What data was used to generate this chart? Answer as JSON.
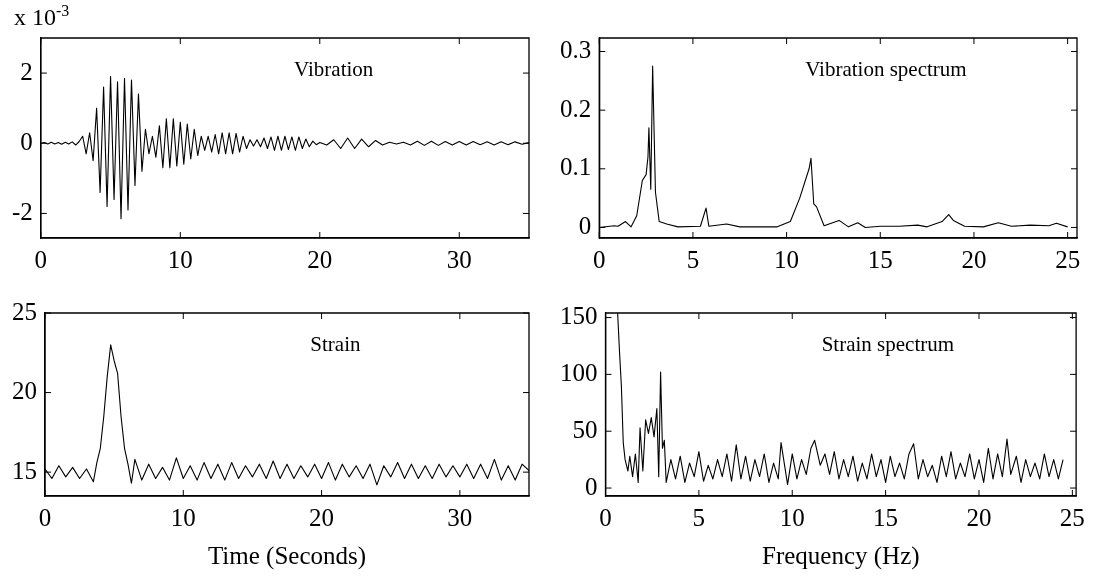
{
  "chart_data": [
    {
      "type": "line",
      "title": "Vibration",
      "annotations": [
        "x 10$^{-3}$"
      ],
      "xlim": [
        0,
        35
      ],
      "ylim": [
        -2.7,
        3
      ],
      "xticks": [
        0,
        10,
        20,
        30
      ],
      "yticks": [
        -2,
        0,
        2
      ],
      "grid": false,
      "marker": "none",
      "x": [
        0,
        0.25,
        0.5,
        0.75,
        1,
        1.25,
        1.5,
        1.75,
        2,
        2.25,
        2.5,
        2.75,
        3,
        3.25,
        3.5,
        3.75,
        4,
        4.25,
        4.5,
        4.75,
        5,
        5.25,
        5.5,
        5.75,
        6,
        6.25,
        6.5,
        6.75,
        7,
        7.25,
        7.5,
        7.75,
        8,
        8.25,
        8.5,
        8.75,
        9,
        9.25,
        9.5,
        9.75,
        10,
        10.25,
        10.5,
        10.75,
        11,
        11.25,
        11.5,
        11.75,
        12,
        12.25,
        12.5,
        12.75,
        13,
        13.25,
        13.5,
        13.75,
        14,
        14.25,
        14.5,
        14.75,
        15,
        15.25,
        15.5,
        15.75,
        16,
        16.25,
        16.5,
        16.75,
        17,
        17.25,
        17.5,
        17.75,
        18,
        18.25,
        18.5,
        18.75,
        19,
        19.25,
        19.5,
        19.75,
        20,
        20.5,
        21,
        21.5,
        22,
        22.5,
        23,
        23.5,
        24,
        24.5,
        25,
        25.5,
        26,
        26.5,
        27,
        27.5,
        28,
        28.5,
        29,
        29.5,
        30,
        30.5,
        31,
        31.5,
        32,
        32.5,
        33,
        33.5,
        34,
        34.5,
        35
      ],
      "series": [
        {
          "color": "#000000",
          "values": [
            0,
            0.02,
            -0.02,
            0.03,
            -0.02,
            0.02,
            -0.03,
            0.03,
            -0.02,
            0.04,
            -0.05,
            0.05,
            0.2,
            -0.3,
            0.3,
            -0.5,
            1,
            -1.4,
            1.6,
            -1.8,
            1.9,
            -1.6,
            1.75,
            -2.15,
            1.85,
            -1.9,
            1.8,
            -1.2,
            1.4,
            -0.8,
            0.4,
            -0.3,
            0.2,
            -0.4,
            0.5,
            -0.7,
            0.7,
            -0.7,
            0.7,
            -0.65,
            0.6,
            -0.6,
            0.55,
            -0.45,
            0.4,
            -0.35,
            0.2,
            -0.2,
            0.2,
            -0.25,
            0.25,
            -0.3,
            0.3,
            -0.3,
            0.3,
            -0.3,
            0.28,
            -0.25,
            0.2,
            -0.15,
            0.1,
            -0.08,
            0.1,
            -0.1,
            0.15,
            -0.15,
            0.18,
            -0.2,
            0.2,
            -0.2,
            0.2,
            -0.18,
            0.18,
            -0.2,
            0.18,
            -0.15,
            0.12,
            -0.1,
            0.06,
            -0.04,
            0.02,
            -0.05,
            0.1,
            -0.15,
            0.15,
            -0.15,
            0.12,
            -0.1,
            0.08,
            -0.05,
            0.03,
            -0.02,
            0.03,
            -0.05,
            0.06,
            -0.06,
            0.06,
            -0.06,
            0.05,
            -0.05,
            0.05,
            -0.05,
            0.05,
            -0.04,
            0.04,
            -0.05,
            0.04,
            -0.04,
            0.04,
            -0.03,
            0.02
          ]
        }
      ]
    },
    {
      "type": "line",
      "title": "Vibration spectrum",
      "xlim": [
        0,
        25.5
      ],
      "ylim": [
        -0.018,
        0.323
      ],
      "xticks": [
        0,
        5,
        10,
        15,
        20,
        25
      ],
      "yticks": [
        {
          "value": 0,
          "label": "0"
        },
        0.1,
        0.2,
        0.3
      ],
      "grid": false,
      "marker": "none",
      "x": [
        0,
        0.8,
        1,
        1.4,
        1.7,
        2,
        2.3,
        2.5,
        2.6,
        2.65,
        2.75,
        2.85,
        3,
        3.2,
        3.6,
        4.2,
        5.4,
        5.7,
        5.85,
        6.8,
        7.5,
        9.5,
        10.2,
        10.7,
        11.2,
        11.3,
        11.45,
        11.6,
        12,
        12.8,
        13.3,
        13.8,
        14.2,
        15,
        16,
        17,
        17.5,
        18.3,
        18.65,
        18.9,
        19.5,
        20.5,
        21.3,
        22,
        23,
        24,
        24.4,
        25
      ],
      "series": [
        {
          "color": "#000000",
          "values": [
            0,
            0.003,
            0.002,
            0.01,
            0.001,
            0.02,
            0.08,
            0.09,
            0.12,
            0.17,
            0.065,
            0.275,
            0.06,
            0.01,
            0.006,
            0.001,
            0.002,
            0.033,
            0.002,
            0.006,
            0.001,
            0.001,
            0.01,
            0.05,
            0.1,
            0.118,
            0.04,
            0.035,
            0.003,
            0.012,
            0.001,
            0.008,
            0,
            0.002,
            0.002,
            0.004,
            0.001,
            0.01,
            0.022,
            0.012,
            0.002,
            0.001,
            0.008,
            0.002,
            0.004,
            0.003,
            0.007,
            0.001
          ]
        }
      ]
    },
    {
      "type": "line",
      "title": "Strain",
      "xlabel": "Time (Seconds)",
      "xlim": [
        0,
        35
      ],
      "ylim": [
        13.5,
        25
      ],
      "xticks": [
        0,
        10,
        20,
        30
      ],
      "yticks": [
        15,
        20,
        25
      ],
      "grid": false,
      "marker": "none",
      "x": [
        0,
        0.5,
        1,
        1.5,
        2,
        2.5,
        3,
        3.5,
        3.75,
        4,
        4.25,
        4.5,
        4.75,
        5,
        5.25,
        5.5,
        5.75,
        6,
        6.25,
        6.5,
        7,
        7.5,
        8,
        8.5,
        9,
        9.5,
        10,
        10.5,
        11,
        11.5,
        12,
        12.5,
        13,
        13.5,
        14,
        14.5,
        15,
        15.5,
        16,
        16.5,
        17,
        17.5,
        18,
        18.5,
        19,
        19.5,
        20,
        20.5,
        21,
        21.5,
        22,
        22.5,
        23,
        23.5,
        24,
        24.5,
        25,
        25.5,
        26,
        26.5,
        27,
        27.5,
        28,
        28.5,
        29,
        29.5,
        30,
        30.5,
        31,
        31.5,
        32,
        32.5,
        33,
        33.5,
        34,
        34.5,
        35
      ],
      "series": [
        {
          "color": "#000000",
          "values": [
            15.2,
            14.6,
            15.4,
            14.7,
            15.3,
            14.6,
            15.2,
            14.4,
            15.6,
            16.5,
            18.5,
            21,
            23,
            22,
            21.2,
            18.5,
            16.5,
            15.5,
            14.3,
            15.8,
            14.5,
            15.5,
            14.6,
            15.3,
            14.5,
            15.9,
            14.6,
            15.4,
            14.5,
            15.6,
            14.6,
            15.5,
            14.5,
            15.6,
            14.6,
            15.4,
            14.7,
            15.5,
            14.6,
            15.7,
            14.6,
            15.5,
            14.6,
            15.4,
            14.7,
            15.5,
            14.6,
            15.6,
            14.5,
            15.5,
            14.7,
            15.4,
            14.6,
            15.5,
            14.2,
            15.4,
            14.7,
            15.6,
            14.6,
            15.5,
            14.6,
            15.4,
            14.6,
            15.5,
            14.7,
            15.4,
            14.7,
            15.5,
            14.6,
            15.5,
            14.6,
            15.8,
            14.5,
            15.4,
            14.5,
            15.5,
            15.1
          ]
        }
      ]
    },
    {
      "type": "line",
      "title": "Strain spectrum",
      "xlabel": "Frequency (Hz)",
      "xlim": [
        0,
        25.2
      ],
      "ylim": [
        -7,
        154
      ],
      "xticks": [
        0,
        5,
        10,
        15,
        20,
        25
      ],
      "yticks": [
        0,
        50,
        100,
        150
      ],
      "grid": false,
      "marker": "none",
      "x": [
        0.65,
        0.75,
        0.85,
        0.95,
        1.05,
        1.2,
        1.3,
        1.45,
        1.6,
        1.75,
        1.85,
        2,
        2.15,
        2.3,
        2.45,
        2.6,
        2.75,
        2.85,
        2.95,
        3.05,
        3.15,
        3.25,
        3.5,
        3.75,
        4,
        4.25,
        4.5,
        4.75,
        5,
        5.25,
        5.5,
        5.75,
        6,
        6.25,
        6.5,
        6.75,
        7,
        7.25,
        7.5,
        7.75,
        8,
        8.25,
        8.5,
        8.75,
        9,
        9.25,
        9.4,
        9.75,
        10,
        10.25,
        10.5,
        10.75,
        11,
        11.2,
        11.5,
        11.75,
        12,
        12.25,
        12.5,
        12.75,
        13,
        13.25,
        13.5,
        13.75,
        14,
        14.25,
        14.5,
        14.75,
        15,
        15.25,
        15.5,
        15.75,
        16,
        16.25,
        16.5,
        16.75,
        17,
        17.25,
        17.5,
        17.75,
        18,
        18.25,
        18.5,
        18.75,
        19,
        19.25,
        19.5,
        19.75,
        20,
        20.25,
        20.5,
        20.75,
        21,
        21.25,
        21.5,
        21.7,
        22,
        22.25,
        22.5,
        22.75,
        23,
        23.25,
        23.5,
        23.75,
        24,
        24.25,
        24.5
      ],
      "series": [
        {
          "color": "#000000",
          "values": [
            154,
            120,
            90,
            40,
            25,
            15,
            28,
            10,
            30,
            5,
            53,
            15,
            60,
            48,
            62,
            45,
            70,
            10,
            102,
            35,
            42,
            5,
            25,
            8,
            28,
            5,
            22,
            10,
            32,
            6,
            20,
            8,
            25,
            10,
            30,
            6,
            38,
            8,
            28,
            6,
            25,
            10,
            30,
            5,
            22,
            8,
            40,
            3,
            30,
            8,
            25,
            12,
            35,
            42,
            20,
            30,
            12,
            32,
            8,
            25,
            10,
            28,
            6,
            22,
            8,
            30,
            10,
            25,
            5,
            28,
            10,
            22,
            8,
            30,
            39,
            8,
            25,
            10,
            20,
            5,
            28,
            10,
            32,
            8,
            22,
            10,
            30,
            8,
            25,
            5,
            35,
            8,
            30,
            10,
            43,
            12,
            28,
            5,
            25,
            10,
            22,
            8,
            30,
            10,
            25,
            8,
            25
          ]
        }
      ]
    }
  ]
}
